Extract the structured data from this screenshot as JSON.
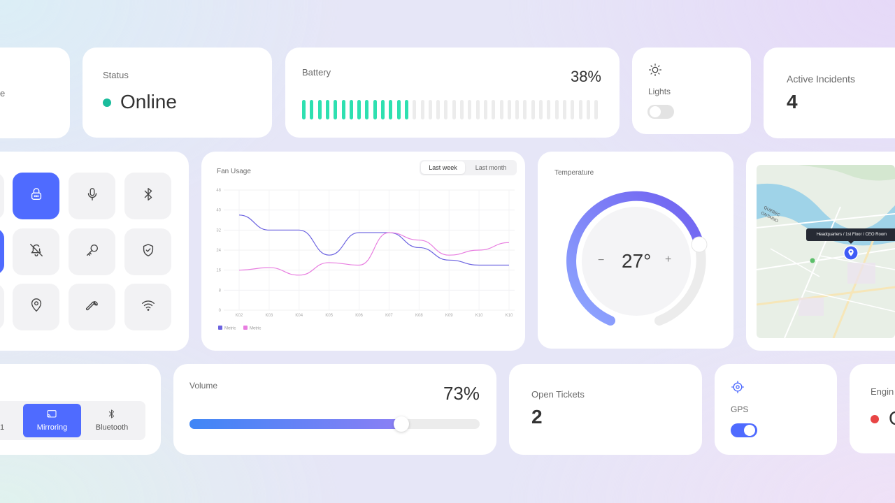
{
  "status": {
    "label": "Status",
    "value": "Online",
    "dot_color": "#1abc9c"
  },
  "partial_left_top": {
    "text": "e"
  },
  "battery": {
    "label": "Battery",
    "value": "38%",
    "percent": 38,
    "color": "#2ee0b0"
  },
  "lights": {
    "label": "Lights",
    "icon": "sun-icon",
    "on": false
  },
  "incidents": {
    "label": "Active Incidents",
    "value": "4"
  },
  "tiles": [
    {
      "name": "lock-tile",
      "icon": "lock-icon",
      "active": true
    },
    {
      "name": "microphone-tile",
      "icon": "microphone-icon",
      "active": false
    },
    {
      "name": "bluetooth-tile",
      "icon": "bluetooth-icon",
      "active": false
    },
    {
      "name": "bell-off-tile",
      "icon": "bell-off-icon",
      "active": false
    },
    {
      "name": "key-tile",
      "icon": "key-icon",
      "active": false
    },
    {
      "name": "shield-tile",
      "icon": "shield-icon",
      "active": false
    },
    {
      "name": "location-tile",
      "icon": "location-pin-icon",
      "active": false
    },
    {
      "name": "wrench-tile",
      "icon": "wrench-icon",
      "active": false
    },
    {
      "name": "wifi-tile",
      "icon": "wifi-icon",
      "active": false
    }
  ],
  "fan_usage": {
    "title": "Fan Usage",
    "tabs": [
      "Last week",
      "Last month"
    ],
    "active_tab": "Last week"
  },
  "chart_data": {
    "type": "line",
    "title": "Fan Usage",
    "x": [
      "K02",
      "K03",
      "K04",
      "K05",
      "K06",
      "K07",
      "K08",
      "K09",
      "K10",
      "K10"
    ],
    "y_ticks": [
      "0",
      "8",
      "16",
      "24",
      "32",
      "40",
      "48"
    ],
    "ylim": [
      0,
      48
    ],
    "series": [
      {
        "name": "Metric",
        "color": "#6c63e0",
        "values": [
          38,
          32,
          32,
          22,
          31,
          31,
          25,
          20,
          18,
          18
        ]
      },
      {
        "name": "Metric",
        "color": "#e87ee0",
        "values": [
          16,
          17,
          14,
          19,
          18,
          31,
          28,
          22,
          24,
          27
        ]
      }
    ],
    "grid": true,
    "legend": "bottom-left"
  },
  "temperature": {
    "label": "Temperature",
    "value": "27°",
    "minus": "−",
    "plus": "+",
    "level": 0.36
  },
  "map": {
    "tooltip": "Headquarters / 1st Floor / CEO Room",
    "labels": [
      "QUEBEC",
      "ONTARIO"
    ]
  },
  "casting": {
    "partial_label": "1",
    "mirroring": "Mirroring",
    "bluetooth": "Bluetooth"
  },
  "volume": {
    "label": "Volume",
    "value": "73%",
    "percent": 73
  },
  "tickets": {
    "label": "Open Tickets",
    "value": "2"
  },
  "gps": {
    "label": "GPS",
    "icon": "crosshair-icon",
    "on": true
  },
  "engine": {
    "label": "Engin",
    "dot_color": "#e84545",
    "value_partial": "O"
  }
}
